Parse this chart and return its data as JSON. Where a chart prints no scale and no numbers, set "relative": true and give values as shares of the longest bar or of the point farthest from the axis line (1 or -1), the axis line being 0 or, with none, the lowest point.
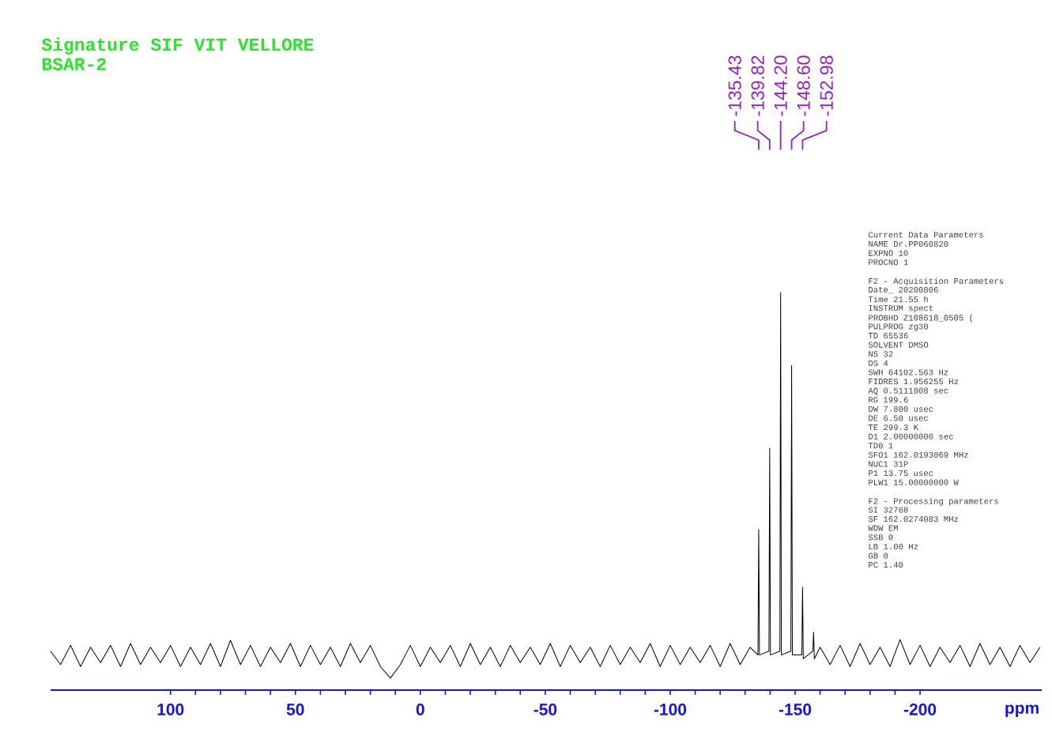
{
  "chart_data": {
    "type": "line",
    "title": "Signature SIF VIT VELLORE",
    "subtitle": "BSAR-2",
    "xlabel": "ppm",
    "relative": true,
    "color": "#000000",
    "xlim": [
      148,
      -248.7
    ],
    "xticks": [
      100,
      50,
      0,
      -50,
      -100,
      -150,
      -200
    ],
    "x": [
      148,
      144,
      140,
      136,
      132,
      128,
      124,
      120,
      116,
      112,
      108,
      104,
      100,
      96,
      92,
      88,
      84,
      80,
      76,
      72,
      68,
      64,
      60,
      56,
      52,
      48,
      44,
      40,
      36,
      32,
      28,
      24,
      20,
      16,
      12,
      8,
      4,
      0,
      -4,
      -8,
      -12,
      -16,
      -20,
      -24,
      -28,
      -32,
      -36,
      -40,
      -44,
      -48,
      -52,
      -56,
      -60,
      -64,
      -68,
      -72,
      -76,
      -80,
      -84,
      -88,
      -92,
      -96,
      -100,
      -104,
      -108,
      -112,
      -116,
      -120,
      -124,
      -128,
      -132,
      -135.13,
      -135.43,
      -135.73,
      -139.52,
      -139.82,
      -140.12,
      -143.9,
      -144.2,
      -144.5,
      -148.3,
      -148.6,
      -148.9,
      -152.68,
      -152.98,
      -153.28,
      -157.1,
      -157.4,
      -157.7,
      -160,
      -164,
      -168,
      -172,
      -176,
      -180,
      -184,
      -188,
      -192,
      -196,
      -200,
      -204,
      -208,
      -212,
      -216,
      -220,
      -224,
      -228,
      -232,
      -236,
      -240,
      -244,
      -248
    ],
    "values": [
      0.07,
      0.035,
      0.085,
      0.03,
      0.08,
      0.04,
      0.085,
      0.03,
      0.09,
      0.035,
      0.08,
      0.04,
      0.085,
      0.03,
      0.08,
      0.035,
      0.09,
      0.03,
      0.098,
      0.035,
      0.085,
      0.03,
      0.08,
      0.04,
      0.09,
      0.03,
      0.085,
      0.035,
      0.08,
      0.03,
      0.09,
      0.04,
      0.085,
      0.03,
      0.0,
      0.035,
      0.085,
      0.03,
      0.08,
      0.04,
      0.085,
      0.03,
      0.09,
      0.035,
      0.08,
      0.03,
      0.085,
      0.04,
      0.08,
      0.035,
      0.09,
      0.03,
      0.085,
      0.04,
      0.08,
      0.03,
      0.085,
      0.035,
      0.08,
      0.04,
      0.09,
      0.03,
      0.085,
      0.035,
      0.08,
      0.04,
      0.085,
      0.03,
      0.09,
      0.035,
      0.08,
      0.06,
      0.385,
      0.06,
      0.07,
      0.596,
      0.06,
      0.07,
      1,
      0.06,
      0.07,
      0.811,
      0.06,
      0.06,
      0.236,
      0.05,
      0.07,
      0.119,
      0.05,
      0.08,
      0.035,
      0.085,
      0.03,
      0.09,
      0.035,
      0.08,
      0.03,
      0.1,
      0.035,
      0.085,
      0.03,
      0.08,
      0.04,
      0.085,
      0.03,
      0.09,
      0.035,
      0.08,
      0.03,
      0.085,
      0.04,
      0.08
    ],
    "annotations": [
      {
        "text": "-135.43",
        "x": -135.43
      },
      {
        "text": "-139.82",
        "x": -139.82
      },
      {
        "text": "-144.20",
        "x": -144.2
      },
      {
        "text": "-148.60",
        "x": -148.6
      },
      {
        "text": "-152.98",
        "x": -152.98
      },
      "Current Data Parameters",
      "NAME Dr.PP060820",
      "EXPNO 10",
      "PROCNO 1",
      "F2 - Acquisition Parameters",
      "Date_ 20200806",
      "Time 21.55 h",
      "INSTRUM spect",
      "PROBHD Z108618_0505 (",
      "PULPROG zg30",
      "TD 65536",
      "SOLVENT DMSO",
      "NS 32",
      "DS 4",
      "SWH 64102.563 Hz",
      "FIDRES 1.956255 Hz",
      "AQ 0.5111808 sec",
      "RG 199.6",
      "DW 7.800 usec",
      "DE 6.50 usec",
      "TE 299.3 K",
      "D1 2.00000000 sec",
      "TD0 1",
      "SFO1 162.0193069 MHz",
      "NUC1 31P",
      "P1 13.75 usec",
      "PLW1 15.00000000 W",
      "F2 - Processing parameters",
      "SI 32768",
      "SF 162.0274083 MHz",
      "WDW EM",
      "SSB 0",
      "LB 1.00 Hz",
      "GB 0",
      "PC 1.40"
    ]
  }
}
